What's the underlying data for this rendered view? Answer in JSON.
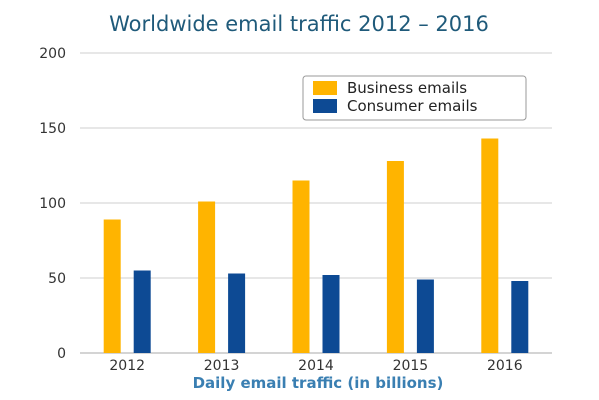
{
  "chart_data": {
    "type": "bar",
    "title": "Worldwide email traffic 2012 – 2016",
    "xlabel": "Daily email traffic (in billions)",
    "ylabel": "",
    "categories": [
      "2012",
      "2013",
      "2014",
      "2015",
      "2016"
    ],
    "series": [
      {
        "name": "Business emails",
        "values": [
          89,
          101,
          115,
          128,
          143
        ],
        "color": "#ffb400"
      },
      {
        "name": "Consumer emails",
        "values": [
          55,
          53,
          52,
          49,
          48
        ],
        "color": "#0d4a94"
      }
    ],
    "ylim": [
      0,
      200
    ],
    "yticks": [
      0,
      50,
      100,
      150,
      200
    ],
    "grid": true,
    "legend_position": "top-right"
  }
}
